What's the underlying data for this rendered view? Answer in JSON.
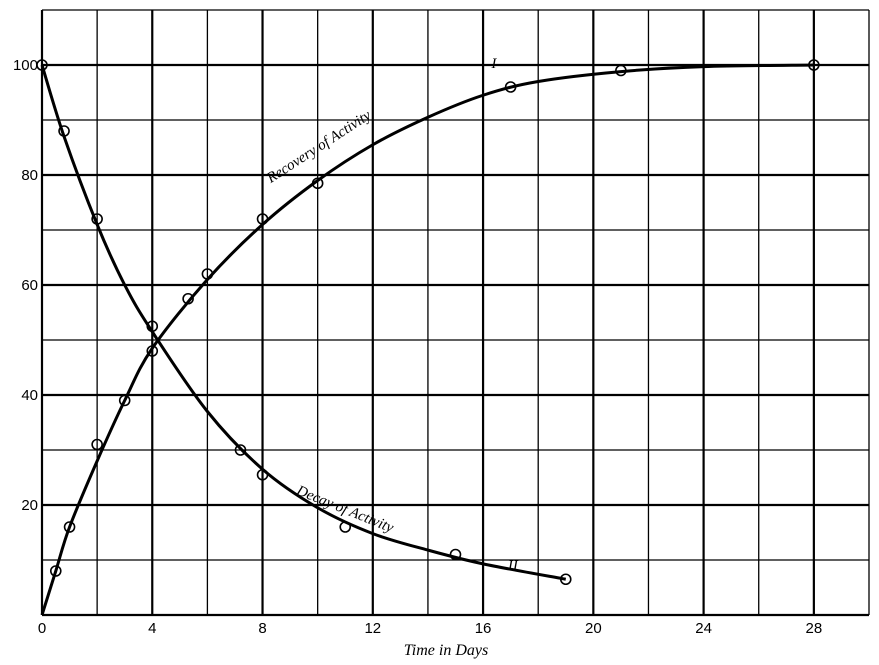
{
  "chart_data": {
    "type": "line",
    "title": "",
    "xlabel": "Time in Days",
    "ylabel": "",
    "xlim": [
      0,
      30
    ],
    "ylim": [
      0,
      110
    ],
    "grid": true,
    "x_grid_step": 2,
    "y_grid_step": 10,
    "x_ticks": [
      0,
      4,
      8,
      12,
      16,
      20,
      24,
      28
    ],
    "y_ticks": [
      20,
      40,
      60,
      80,
      100
    ],
    "series": [
      {
        "name": "Recovery of Activity",
        "marker_label": "I",
        "points": [
          [
            0,
            0
          ],
          [
            0.5,
            8
          ],
          [
            1,
            16
          ],
          [
            2,
            31
          ],
          [
            3,
            39
          ],
          [
            4,
            48
          ],
          [
            5.3,
            57.5
          ],
          [
            6,
            62
          ],
          [
            8,
            72
          ],
          [
            10,
            78.5
          ],
          [
            17,
            96
          ],
          [
            21,
            99
          ],
          [
            28,
            100
          ]
        ],
        "curve": [
          [
            0,
            0
          ],
          [
            0.5,
            8
          ],
          [
            1,
            16
          ],
          [
            2,
            28
          ],
          [
            3,
            39
          ],
          [
            4,
            48.5
          ],
          [
            6,
            61
          ],
          [
            8,
            71
          ],
          [
            10,
            79
          ],
          [
            12,
            85.5
          ],
          [
            14,
            90.5
          ],
          [
            16,
            94.5
          ],
          [
            18,
            97
          ],
          [
            21,
            98.8
          ],
          [
            24,
            99.7
          ],
          [
            28,
            100
          ]
        ]
      },
      {
        "name": "Decay of Activity",
        "marker_label": "II",
        "points": [
          [
            0,
            100
          ],
          [
            0.8,
            88
          ],
          [
            2,
            72
          ],
          [
            4,
            52.5
          ],
          [
            7.2,
            30
          ],
          [
            8,
            25.5
          ],
          [
            11,
            16
          ],
          [
            15,
            11
          ],
          [
            19,
            6.5
          ]
        ],
        "curve": [
          [
            0,
            100
          ],
          [
            0.8,
            87
          ],
          [
            2,
            71
          ],
          [
            3,
            60
          ],
          [
            4,
            51.5
          ],
          [
            6,
            37
          ],
          [
            8,
            26.5
          ],
          [
            10,
            19.5
          ],
          [
            12,
            14.8
          ],
          [
            14,
            11.8
          ],
          [
            16,
            9.3
          ],
          [
            19,
            6.5
          ]
        ]
      }
    ]
  }
}
